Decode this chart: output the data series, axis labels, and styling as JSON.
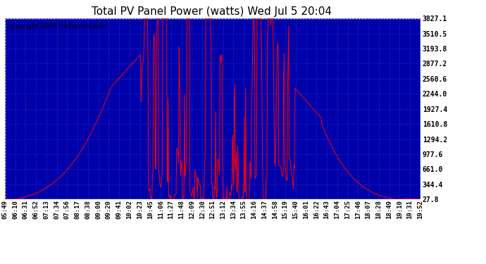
{
  "title": "Total PV Panel Power (watts) Wed Jul 5 20:04",
  "copyright_text": "Copyright 2006 Cartronics.com",
  "bg_color": "#0000AA",
  "line_color": "#FF0000",
  "grid_color": "#3333CC",
  "yticks": [
    27.8,
    344.4,
    661.0,
    977.6,
    1294.2,
    1610.8,
    1927.4,
    2244.0,
    2560.6,
    2877.2,
    3193.8,
    3510.5,
    3827.1
  ],
  "ylim": [
    27.8,
    3827.1
  ],
  "xtick_labels": [
    "05:49",
    "06:10",
    "06:31",
    "06:52",
    "07:13",
    "07:34",
    "07:56",
    "08:17",
    "08:38",
    "09:00",
    "09:20",
    "09:41",
    "10:02",
    "10:23",
    "10:45",
    "11:06",
    "11:27",
    "11:48",
    "12:09",
    "12:30",
    "12:51",
    "13:12",
    "13:34",
    "13:55",
    "14:16",
    "14:37",
    "14:58",
    "15:19",
    "15:40",
    "16:01",
    "16:22",
    "16:43",
    "17:04",
    "17:25",
    "17:46",
    "18:07",
    "18:28",
    "18:49",
    "19:10",
    "19:31",
    "19:52"
  ],
  "title_fontsize": 11,
  "copyright_fontsize": 6.5,
  "tick_fontsize": 7
}
